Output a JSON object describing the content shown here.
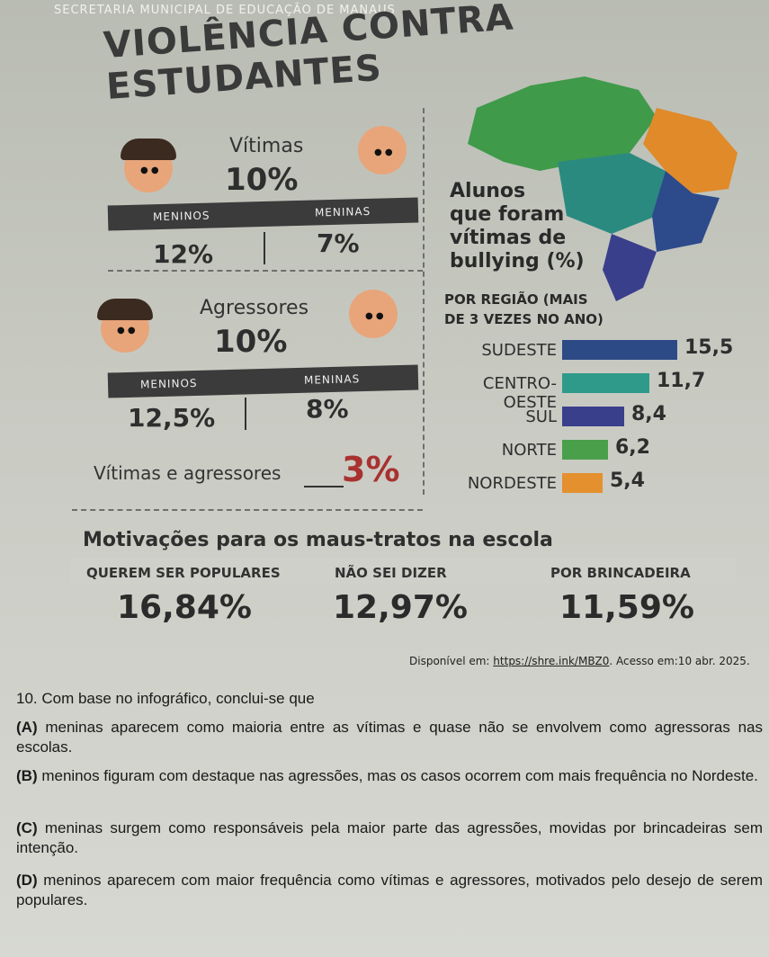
{
  "header": "SECRETARIA MUNICIPAL DE EDUCAÇÃO DE MANAUS",
  "title": "VIOLÊNCIA CONTRA ESTUDANTES",
  "victims": {
    "label": "Vítimas",
    "total": "10%",
    "boys_label": "MENINOS",
    "girls_label": "MENINAS",
    "boys": "12%",
    "girls": "7%"
  },
  "aggressors": {
    "label": "Agressores",
    "total": "10%",
    "boys_label": "MENINOS",
    "girls_label": "MENINAS",
    "boys": "12,5%",
    "girls": "8%"
  },
  "both": {
    "label": "Vítimas e agressores",
    "value": "3%"
  },
  "map": {
    "caption": [
      "Alunos",
      "que foram",
      "vítimas de",
      "bullying (%)"
    ],
    "subcaption": [
      "POR REGIÃO (MAIS",
      "DE 3 VEZES NO ANO)"
    ]
  },
  "chart_data": {
    "type": "bar",
    "categories": [
      "SUDESTE",
      "CENTRO-OESTE",
      "SUL",
      "NORTE",
      "NORDESTE"
    ],
    "values": [
      15.5,
      11.7,
      8.4,
      6.2,
      5.4
    ],
    "value_labels": [
      "15,5",
      "11,7",
      "8,4",
      "6,2",
      "5,4"
    ],
    "colors": [
      "#2c4a86",
      "#2f9a8a",
      "#3a3f8c",
      "#4aa04a",
      "#e5902e"
    ],
    "xlim": [
      0,
      15.5
    ]
  },
  "motivations": {
    "title": "Motivações para os maus-tratos na escola",
    "items": [
      {
        "label": "QUEREM SER POPULARES",
        "value": "16,84%"
      },
      {
        "label": "NÃO SEI DIZER",
        "value": "12,97%"
      },
      {
        "label": "POR BRINCADEIRA",
        "value": "11,59%"
      }
    ]
  },
  "source": {
    "prefix": "Disponível em: ",
    "link": "https://shre.ink/MBZ0",
    "suffix": ". Acesso em:10 abr. 2025."
  },
  "question": {
    "stem": "10. Com base no infográfico, conclui-se que",
    "options": [
      {
        "letter": "(A)",
        "text": " meninas aparecem como maioria entre as vítimas e quase não se envolvem como agressoras nas escolas."
      },
      {
        "letter": "(B)",
        "text": " meninos figuram com destaque nas agressões, mas os casos ocorrem com mais frequência no Nordeste."
      },
      {
        "letter": "(C)",
        "text": " meninas surgem como responsáveis pela maior parte das agressões, movidas por brincadeiras sem intenção."
      },
      {
        "letter": "(D)",
        "text": " meninos aparecem com maior frequência como vítimas e agressores, motivados pelo desejo de serem populares."
      }
    ]
  },
  "colors": {
    "map_green": "#3f9a4a",
    "map_teal": "#2b8a80",
    "map_blue": "#2d4a8a",
    "map_orange": "#e08a2a",
    "dark_band": "#3b3b3b"
  }
}
